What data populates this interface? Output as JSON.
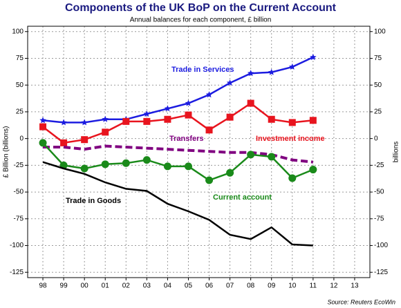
{
  "chart_data": {
    "type": "line",
    "title": "Components of the UK BoP on the Current Account",
    "subtitle": "Annual balances for each component, £ billion",
    "ylabel": "£ Billion (billions)",
    "y2label": "billions",
    "source": "Source: Reuters EcoWin",
    "categories": [
      "98",
      "99",
      "00",
      "01",
      "02",
      "03",
      "04",
      "05",
      "06",
      "07",
      "08",
      "09",
      "10",
      "11",
      "12",
      "13"
    ],
    "series": [
      {
        "name": "Trade in Services",
        "color": "#1c1ce0",
        "marker": "star",
        "values": [
          17,
          15,
          15,
          18,
          18,
          23,
          28,
          33,
          41,
          52,
          61,
          62,
          67,
          76,
          null,
          null
        ]
      },
      {
        "name": "Investment income",
        "color": "#e8141e",
        "marker": "square",
        "values": [
          11,
          -4,
          -1,
          6,
          16,
          16,
          18,
          22,
          8,
          20,
          33,
          18,
          15,
          17,
          null,
          null
        ]
      },
      {
        "name": "Transfers",
        "color": "#800080",
        "marker": "none",
        "dashed": true,
        "values": [
          -8,
          -8,
          -10,
          -7,
          -8,
          -9,
          -10,
          -11,
          -12,
          -13,
          -13,
          -15,
          -20,
          -22,
          null,
          null
        ]
      },
      {
        "name": "Current account",
        "color": "#1a8a1a",
        "marker": "circle",
        "values": [
          -4,
          -25,
          -28,
          -24,
          -23,
          -20,
          -26,
          -26,
          -39,
          -32,
          -15,
          -17,
          -37,
          -29,
          null,
          null
        ]
      },
      {
        "name": "Trade in Goods",
        "color": "#000000",
        "marker": "none",
        "values": [
          -22,
          -28,
          -33,
          -41,
          -47,
          -49,
          -61,
          -68,
          -76,
          -90,
          -94,
          -83,
          -99,
          -100,
          null,
          null
        ]
      }
    ],
    "ylim": [
      -130,
      105
    ],
    "yticks": [
      100,
      75,
      50,
      25,
      0,
      -25,
      -50,
      -75,
      -100,
      -125
    ],
    "y2lim": [
      -130,
      105
    ],
    "y2ticks": [
      100,
      75,
      50,
      25,
      0,
      -25,
      -50,
      -75,
      -100,
      -125
    ],
    "grid": true
  }
}
